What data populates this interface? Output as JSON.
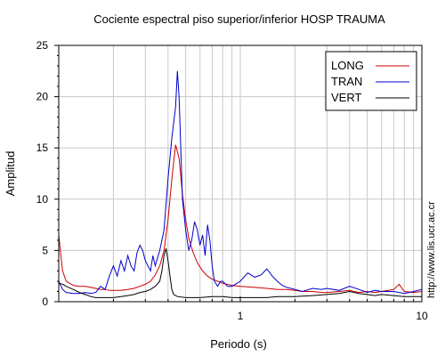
{
  "chart_data": {
    "type": "line",
    "title": "Cociente espectral piso superior/inferior  HOSP TRAUMA",
    "xlabel": "Periodo (s)",
    "ylabel": "Amplitud",
    "xscale": "log",
    "xlim": [
      0.1,
      10
    ],
    "ylim": [
      0,
      25
    ],
    "x_ticks": [
      {
        "value": 1,
        "label": "1"
      },
      {
        "value": 10,
        "label": "10"
      }
    ],
    "y_ticks": [
      {
        "value": 0,
        "label": "0"
      },
      {
        "value": 5,
        "label": "5"
      },
      {
        "value": 10,
        "label": "10"
      },
      {
        "value": 15,
        "label": "15"
      },
      {
        "value": 20,
        "label": "20"
      },
      {
        "value": 25,
        "label": "25"
      }
    ],
    "grid": true,
    "legend_position": "top-right",
    "series": [
      {
        "name": "LONG",
        "color": "#cc0000",
        "points": [
          [
            0.1,
            6.5
          ],
          [
            0.102,
            5.0
          ],
          [
            0.105,
            3.0
          ],
          [
            0.11,
            2.0
          ],
          [
            0.12,
            1.6
          ],
          [
            0.13,
            1.5
          ],
          [
            0.14,
            1.5
          ],
          [
            0.15,
            1.4
          ],
          [
            0.16,
            1.3
          ],
          [
            0.17,
            1.2
          ],
          [
            0.18,
            1.2
          ],
          [
            0.19,
            1.1
          ],
          [
            0.2,
            1.1
          ],
          [
            0.22,
            1.1
          ],
          [
            0.24,
            1.2
          ],
          [
            0.26,
            1.3
          ],
          [
            0.28,
            1.5
          ],
          [
            0.3,
            1.7
          ],
          [
            0.32,
            2.0
          ],
          [
            0.34,
            2.6
          ],
          [
            0.36,
            3.5
          ],
          [
            0.38,
            5.0
          ],
          [
            0.4,
            8.0
          ],
          [
            0.42,
            12.0
          ],
          [
            0.44,
            15.3
          ],
          [
            0.46,
            14.0
          ],
          [
            0.48,
            10.5
          ],
          [
            0.5,
            8.0
          ],
          [
            0.52,
            6.2
          ],
          [
            0.55,
            4.8
          ],
          [
            0.58,
            3.8
          ],
          [
            0.62,
            3.0
          ],
          [
            0.66,
            2.5
          ],
          [
            0.7,
            2.2
          ],
          [
            0.75,
            2.0
          ],
          [
            0.8,
            1.8
          ],
          [
            0.9,
            1.6
          ],
          [
            1.0,
            1.5
          ],
          [
            1.2,
            1.4
          ],
          [
            1.4,
            1.3
          ],
          [
            1.6,
            1.2
          ],
          [
            1.8,
            1.2
          ],
          [
            2.0,
            1.1
          ],
          [
            2.2,
            1.0
          ],
          [
            2.5,
            1.0
          ],
          [
            2.8,
            0.9
          ],
          [
            3.0,
            0.9
          ],
          [
            3.5,
            1.0
          ],
          [
            4.0,
            1.1
          ],
          [
            4.5,
            0.9
          ],
          [
            5.0,
            1.0
          ],
          [
            5.5,
            0.9
          ],
          [
            6.0,
            1.0
          ],
          [
            7.0,
            1.2
          ],
          [
            7.5,
            1.7
          ],
          [
            8.0,
            1.0
          ],
          [
            9.0,
            0.9
          ],
          [
            10.0,
            1.0
          ]
        ]
      },
      {
        "name": "TRAN",
        "color": "#0000cc",
        "points": [
          [
            0.1,
            2.0
          ],
          [
            0.105,
            1.2
          ],
          [
            0.11,
            0.9
          ],
          [
            0.12,
            0.8
          ],
          [
            0.13,
            0.8
          ],
          [
            0.14,
            0.9
          ],
          [
            0.15,
            0.8
          ],
          [
            0.16,
            0.9
          ],
          [
            0.17,
            1.5
          ],
          [
            0.18,
            1.2
          ],
          [
            0.19,
            2.5
          ],
          [
            0.2,
            3.5
          ],
          [
            0.21,
            2.5
          ],
          [
            0.22,
            4.0
          ],
          [
            0.23,
            3.0
          ],
          [
            0.24,
            4.5
          ],
          [
            0.25,
            3.5
          ],
          [
            0.26,
            3.0
          ],
          [
            0.27,
            4.8
          ],
          [
            0.28,
            5.5
          ],
          [
            0.29,
            5.0
          ],
          [
            0.3,
            4.0
          ],
          [
            0.31,
            3.5
          ],
          [
            0.32,
            3.0
          ],
          [
            0.33,
            4.5
          ],
          [
            0.34,
            3.5
          ],
          [
            0.36,
            5.0
          ],
          [
            0.38,
            7.0
          ],
          [
            0.4,
            12.0
          ],
          [
            0.42,
            16.0
          ],
          [
            0.44,
            19.0
          ],
          [
            0.45,
            22.5
          ],
          [
            0.46,
            20.0
          ],
          [
            0.47,
            15.0
          ],
          [
            0.48,
            10.0
          ],
          [
            0.5,
            7.0
          ],
          [
            0.52,
            5.0
          ],
          [
            0.54,
            6.0
          ],
          [
            0.56,
            7.8
          ],
          [
            0.58,
            7.0
          ],
          [
            0.6,
            5.5
          ],
          [
            0.62,
            6.5
          ],
          [
            0.64,
            4.5
          ],
          [
            0.66,
            7.5
          ],
          [
            0.68,
            6.0
          ],
          [
            0.7,
            3.5
          ],
          [
            0.72,
            2.0
          ],
          [
            0.75,
            1.5
          ],
          [
            0.78,
            2.0
          ],
          [
            0.8,
            2.0
          ],
          [
            0.85,
            1.5
          ],
          [
            0.9,
            1.5
          ],
          [
            1.0,
            2.0
          ],
          [
            1.1,
            2.8
          ],
          [
            1.2,
            2.4
          ],
          [
            1.3,
            2.6
          ],
          [
            1.4,
            3.2
          ],
          [
            1.5,
            2.5
          ],
          [
            1.6,
            2.0
          ],
          [
            1.7,
            1.6
          ],
          [
            1.8,
            1.4
          ],
          [
            2.0,
            1.2
          ],
          [
            2.2,
            1.0
          ],
          [
            2.5,
            1.3
          ],
          [
            2.8,
            1.2
          ],
          [
            3.0,
            1.3
          ],
          [
            3.5,
            1.1
          ],
          [
            4.0,
            1.5
          ],
          [
            4.5,
            1.2
          ],
          [
            5.0,
            0.9
          ],
          [
            5.5,
            1.1
          ],
          [
            6.0,
            1.0
          ],
          [
            7.0,
            1.0
          ],
          [
            8.0,
            0.8
          ],
          [
            9.0,
            1.0
          ],
          [
            10.0,
            1.2
          ]
        ]
      },
      {
        "name": "VERT",
        "color": "#000000",
        "points": [
          [
            0.1,
            1.8
          ],
          [
            0.105,
            1.7
          ],
          [
            0.11,
            1.5
          ],
          [
            0.12,
            1.2
          ],
          [
            0.13,
            0.9
          ],
          [
            0.14,
            0.7
          ],
          [
            0.15,
            0.5
          ],
          [
            0.16,
            0.4
          ],
          [
            0.18,
            0.4
          ],
          [
            0.2,
            0.4
          ],
          [
            0.22,
            0.5
          ],
          [
            0.24,
            0.6
          ],
          [
            0.26,
            0.7
          ],
          [
            0.28,
            0.9
          ],
          [
            0.3,
            1.0
          ],
          [
            0.32,
            1.2
          ],
          [
            0.34,
            1.5
          ],
          [
            0.36,
            2.0
          ],
          [
            0.37,
            3.0
          ],
          [
            0.38,
            4.5
          ],
          [
            0.39,
            5.2
          ],
          [
            0.4,
            4.0
          ],
          [
            0.41,
            2.5
          ],
          [
            0.42,
            1.2
          ],
          [
            0.43,
            0.7
          ],
          [
            0.45,
            0.5
          ],
          [
            0.5,
            0.4
          ],
          [
            0.55,
            0.4
          ],
          [
            0.6,
            0.4
          ],
          [
            0.7,
            0.5
          ],
          [
            0.8,
            0.5
          ],
          [
            0.9,
            0.4
          ],
          [
            1.0,
            0.4
          ],
          [
            1.2,
            0.4
          ],
          [
            1.4,
            0.4
          ],
          [
            1.6,
            0.5
          ],
          [
            1.8,
            0.5
          ],
          [
            2.0,
            0.5
          ],
          [
            2.5,
            0.6
          ],
          [
            3.0,
            0.7
          ],
          [
            3.5,
            0.8
          ],
          [
            4.0,
            1.0
          ],
          [
            4.5,
            0.8
          ],
          [
            5.0,
            0.7
          ],
          [
            5.5,
            0.6
          ],
          [
            6.0,
            0.7
          ],
          [
            7.0,
            0.6
          ],
          [
            8.0,
            0.5
          ],
          [
            9.0,
            0.5
          ],
          [
            10.0,
            0.5
          ]
        ]
      }
    ]
  },
  "side_text": "http://www.lis.ucr.ac.cr"
}
